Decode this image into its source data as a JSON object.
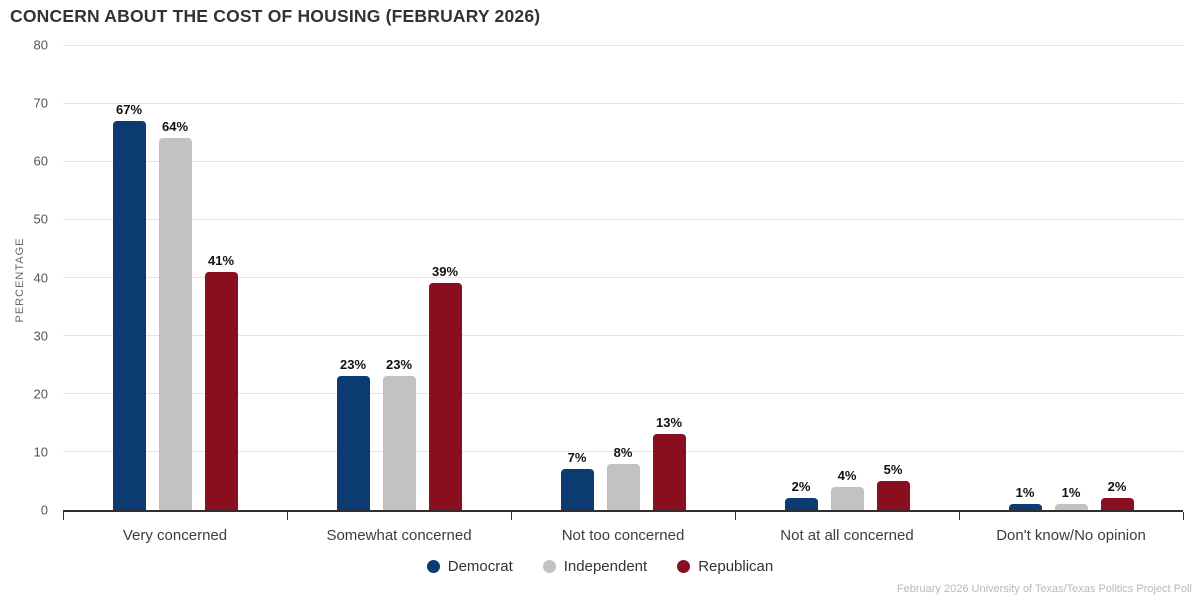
{
  "chart_data": {
    "type": "bar",
    "title": "CONCERN ABOUT THE COST OF HOUSING (FEBRUARY 2026)",
    "ylabel": "PERCENTAGE",
    "ylim": [
      0,
      80
    ],
    "yticks": [
      0,
      10,
      20,
      30,
      40,
      50,
      60,
      70,
      80
    ],
    "grid": true,
    "legend_position": "bottom",
    "value_label_suffix": "%",
    "categories": [
      "Very concerned",
      "Somewhat concerned",
      "Not too concerned",
      "Not at all concerned",
      "Don't know/No opinion"
    ],
    "series": [
      {
        "name": "Democrat",
        "color": "#0b3b70",
        "values": [
          67,
          23,
          7,
          2,
          1
        ]
      },
      {
        "name": "Independent",
        "color": "#c2c2c2",
        "values": [
          64,
          23,
          8,
          4,
          1
        ]
      },
      {
        "name": "Republican",
        "color": "#8b0e20",
        "values": [
          41,
          39,
          13,
          5,
          2
        ]
      }
    ],
    "source": "February 2026 University of Texas/Texas Politics Project Poll",
    "axis_color": "#2f2f2f",
    "grid_color": "#e4e4e4"
  }
}
